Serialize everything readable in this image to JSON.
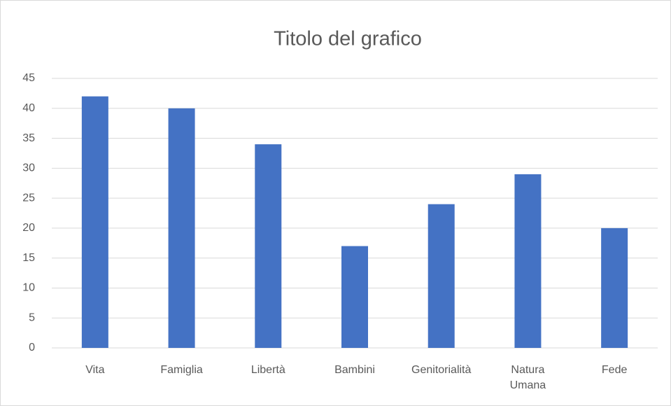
{
  "chart_data": {
    "type": "bar",
    "title": "Titolo del grafico",
    "categories": [
      "Vita",
      "Famiglia",
      "Libertà",
      "Bambini",
      "Genitorialità",
      "Natura Umana",
      "Fede"
    ],
    "values": [
      42,
      40,
      34,
      17,
      24,
      29,
      20
    ],
    "color": "#4472c4",
    "ylim": [
      0,
      45
    ],
    "yticks": [
      0,
      5,
      10,
      15,
      20,
      25,
      30,
      35,
      40,
      45
    ],
    "grid": true
  }
}
